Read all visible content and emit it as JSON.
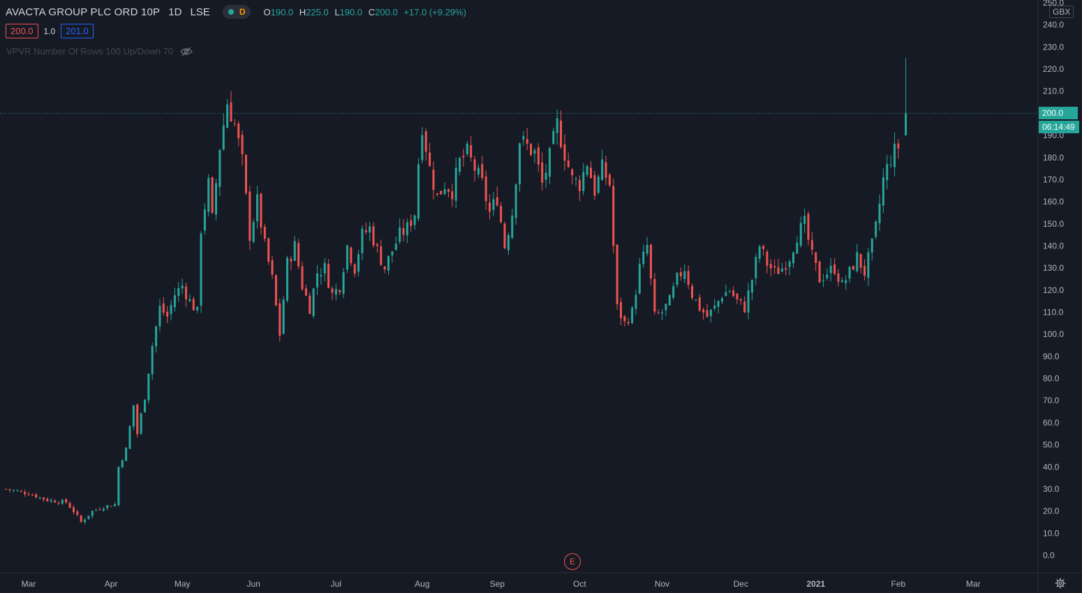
{
  "legend": {
    "symbol": "AVACTA GROUP PLC ORD 10P",
    "interval": "1D",
    "exchange": "LSE",
    "status_letter": "D",
    "o_label": "O",
    "o_value": "190.0",
    "h_label": "H",
    "h_value": "225.0",
    "l_label": "L",
    "l_value": "190.0",
    "c_label": "C",
    "c_value": "200.0",
    "change": "+17.0 (+9.29%)"
  },
  "quote": {
    "bid": "200.0",
    "spread": "1.0",
    "ask": "201.0"
  },
  "indicator": {
    "label": "VPVR Number Of Rows 100 Up/Down 70"
  },
  "price_axis": {
    "currency": "GBX",
    "last_price": "200.0",
    "countdown": "06:14:49"
  },
  "earnings_marker": "E",
  "colors": {
    "background": "#161a25",
    "up": "#26a69a",
    "down": "#ef5350",
    "text": "#b2b5be"
  },
  "chart_data": {
    "type": "candlestick",
    "title": "AVACTA GROUP PLC ORD 10P",
    "ylim": [
      0,
      250
    ],
    "y_ticks": [
      "0.0",
      "10.0",
      "20.0",
      "30.0",
      "40.0",
      "50.0",
      "60.0",
      "70.0",
      "80.0",
      "90.0",
      "100.0",
      "110.0",
      "120.0",
      "130.0",
      "140.0",
      "150.0",
      "160.0",
      "170.0",
      "180.0",
      "190.0",
      "200.0",
      "210.0",
      "220.0",
      "230.0",
      "240.0",
      "250.0"
    ],
    "x_ticks": [
      {
        "label": "Mar",
        "day": 0,
        "bold": false
      },
      {
        "label": "Apr",
        "day": 22,
        "bold": false
      },
      {
        "label": "May",
        "day": 41,
        "bold": false
      },
      {
        "label": "Jun",
        "day": 60,
        "bold": false
      },
      {
        "label": "Jul",
        "day": 82,
        "bold": false
      },
      {
        "label": "Aug",
        "day": 105,
        "bold": false
      },
      {
        "label": "Sep",
        "day": 125,
        "bold": false
      },
      {
        "label": "Oct",
        "day": 147,
        "bold": false
      },
      {
        "label": "Nov",
        "day": 169,
        "bold": false
      },
      {
        "label": "Dec",
        "day": 190,
        "bold": false
      },
      {
        "label": "2021",
        "day": 210,
        "bold": true
      },
      {
        "label": "Feb",
        "day": 232,
        "bold": false
      },
      {
        "label": "Mar",
        "day": 252,
        "bold": false
      }
    ],
    "last_price_line": 200,
    "close_anchors": [
      [
        -6,
        30
      ],
      [
        0,
        28
      ],
      [
        5,
        25
      ],
      [
        10,
        24
      ],
      [
        12,
        20
      ],
      [
        14,
        15
      ],
      [
        17,
        20
      ],
      [
        20,
        22
      ],
      [
        23,
        23
      ],
      [
        24,
        40
      ],
      [
        26,
        48
      ],
      [
        28,
        68
      ],
      [
        29,
        55
      ],
      [
        31,
        72
      ],
      [
        33,
        95
      ],
      [
        35,
        112
      ],
      [
        37,
        108
      ],
      [
        39,
        118
      ],
      [
        41,
        122
      ],
      [
        43,
        115
      ],
      [
        45,
        110
      ],
      [
        46,
        148
      ],
      [
        48,
        168
      ],
      [
        49,
        152
      ],
      [
        51,
        185
      ],
      [
        53,
        205
      ],
      [
        55,
        195
      ],
      [
        57,
        178
      ],
      [
        59,
        145
      ],
      [
        61,
        160
      ],
      [
        63,
        140
      ],
      [
        65,
        125
      ],
      [
        67,
        100
      ],
      [
        69,
        132
      ],
      [
        71,
        140
      ],
      [
        73,
        122
      ],
      [
        75,
        112
      ],
      [
        77,
        128
      ],
      [
        79,
        130
      ],
      [
        81,
        118
      ],
      [
        83,
        122
      ],
      [
        85,
        140
      ],
      [
        87,
        130
      ],
      [
        89,
        145
      ],
      [
        91,
        148
      ],
      [
        93,
        138
      ],
      [
        95,
        130
      ],
      [
        97,
        138
      ],
      [
        99,
        145
      ],
      [
        101,
        148
      ],
      [
        103,
        155
      ],
      [
        104,
        178
      ],
      [
        105,
        195
      ],
      [
        107,
        175
      ],
      [
        109,
        162
      ],
      [
        111,
        168
      ],
      [
        113,
        165
      ],
      [
        115,
        178
      ],
      [
        117,
        182
      ],
      [
        119,
        175
      ],
      [
        121,
        168
      ],
      [
        123,
        155
      ],
      [
        125,
        162
      ],
      [
        127,
        140
      ],
      [
        129,
        155
      ],
      [
        131,
        188
      ],
      [
        133,
        185
      ],
      [
        135,
        182
      ],
      [
        137,
        168
      ],
      [
        139,
        180
      ],
      [
        141,
        195
      ],
      [
        143,
        182
      ],
      [
        145,
        170
      ],
      [
        147,
        168
      ],
      [
        149,
        178
      ],
      [
        151,
        165
      ],
      [
        153,
        175
      ],
      [
        155,
        168
      ],
      [
        157,
        112
      ],
      [
        159,
        105
      ],
      [
        161,
        110
      ],
      [
        163,
        130
      ],
      [
        165,
        140
      ],
      [
        167,
        108
      ],
      [
        169,
        110
      ],
      [
        171,
        115
      ],
      [
        173,
        125
      ],
      [
        175,
        130
      ],
      [
        177,
        118
      ],
      [
        179,
        112
      ],
      [
        181,
        108
      ],
      [
        183,
        112
      ],
      [
        185,
        118
      ],
      [
        187,
        120
      ],
      [
        189,
        115
      ],
      [
        191,
        112
      ],
      [
        193,
        125
      ],
      [
        195,
        140
      ],
      [
        197,
        132
      ],
      [
        199,
        128
      ],
      [
        201,
        130
      ],
      [
        203,
        135
      ],
      [
        205,
        145
      ],
      [
        207,
        150
      ],
      [
        209,
        135
      ],
      [
        211,
        125
      ],
      [
        213,
        128
      ],
      [
        215,
        130
      ],
      [
        217,
        122
      ],
      [
        219,
        128
      ],
      [
        221,
        135
      ],
      [
        223,
        128
      ],
      [
        225,
        140
      ],
      [
        226,
        148
      ],
      [
        228,
        170
      ],
      [
        230,
        180
      ],
      [
        232,
        185
      ],
      [
        233,
        200
      ]
    ]
  }
}
